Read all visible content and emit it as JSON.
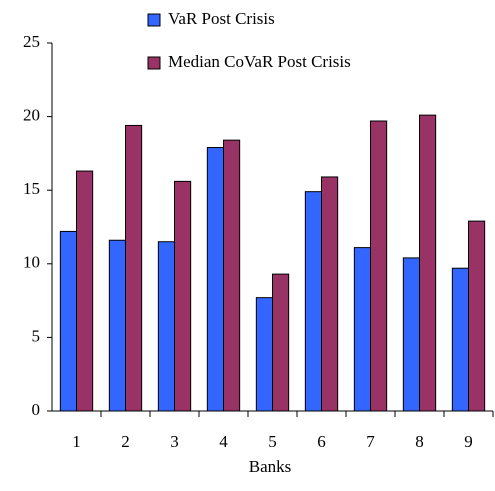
{
  "chart_data": {
    "type": "bar",
    "x_label": "Banks",
    "categories": [
      "1",
      "2",
      "3",
      "4",
      "5",
      "6",
      "7",
      "8",
      "9"
    ],
    "series": [
      {
        "name": "VaR Post Crisis",
        "color": "#3366ff",
        "values": [
          12.2,
          11.6,
          11.5,
          17.9,
          7.7,
          14.9,
          11.1,
          10.4,
          9.7
        ]
      },
      {
        "name": "Median CoVaR Post Crisis",
        "color": "#993366",
        "values": [
          16.3,
          19.4,
          15.6,
          18.4,
          9.3,
          15.9,
          19.7,
          20.1,
          12.9
        ]
      }
    ],
    "ylim": [
      0,
      25
    ],
    "yticks": [
      0,
      5,
      10,
      15,
      20,
      25
    ],
    "legend": "top"
  }
}
